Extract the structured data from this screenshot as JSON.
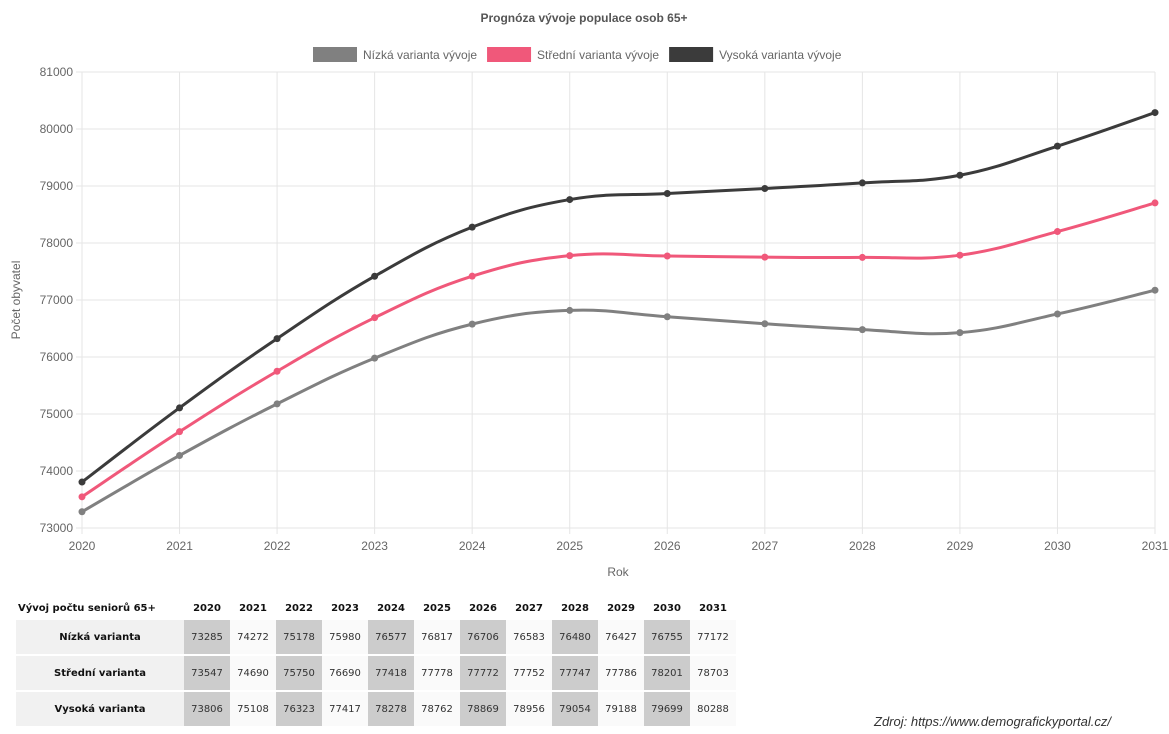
{
  "chart_data": {
    "type": "line",
    "title": "Prognóza vývoje populace osob 65+",
    "xlabel": "Rok",
    "ylabel": "Počet obyvatel",
    "x": [
      2020,
      2021,
      2022,
      2023,
      2024,
      2025,
      2026,
      2027,
      2028,
      2029,
      2030,
      2031
    ],
    "ylim": [
      73000,
      81000
    ],
    "yticks": [
      73000,
      74000,
      75000,
      76000,
      77000,
      78000,
      79000,
      80000,
      81000
    ],
    "grid": true,
    "legend_position": "top",
    "series": [
      {
        "name": "Nízká varianta vývoje",
        "color": "#808080",
        "values": [
          73285,
          74272,
          75178,
          75980,
          76577,
          76817,
          76706,
          76583,
          76480,
          76427,
          76755,
          77172
        ]
      },
      {
        "name": "Střední varianta vývoje",
        "color": "#f0587a",
        "values": [
          73547,
          74690,
          75750,
          76690,
          77418,
          77778,
          77772,
          77752,
          77747,
          77786,
          78201,
          78703
        ]
      },
      {
        "name": "Vysoká varianta vývoje",
        "color": "#3b3b3b",
        "values": [
          73806,
          75108,
          76323,
          77417,
          78278,
          78762,
          78869,
          78956,
          79054,
          79188,
          79699,
          80288
        ]
      }
    ]
  },
  "table": {
    "title": "Vývoj počtu seniorů 65+",
    "years": [
      "2020",
      "2021",
      "2022",
      "2023",
      "2024",
      "2025",
      "2026",
      "2027",
      "2028",
      "2029",
      "2030",
      "2031"
    ],
    "rows": [
      {
        "label": "Nízká varianta",
        "values": [
          "73285",
          "74272",
          "75178",
          "75980",
          "76577",
          "76817",
          "76706",
          "76583",
          "76480",
          "76427",
          "76755",
          "77172"
        ]
      },
      {
        "label": "Střední varianta",
        "values": [
          "73547",
          "74690",
          "75750",
          "76690",
          "77418",
          "77778",
          "77772",
          "77752",
          "77747",
          "77786",
          "78201",
          "78703"
        ]
      },
      {
        "label": "Vysoká varianta",
        "values": [
          "73806",
          "75108",
          "76323",
          "77417",
          "78278",
          "78762",
          "78869",
          "78956",
          "79054",
          "79188",
          "79699",
          "80288"
        ]
      }
    ]
  },
  "source": "Zdroj: https://www.demografickyportal.cz/"
}
